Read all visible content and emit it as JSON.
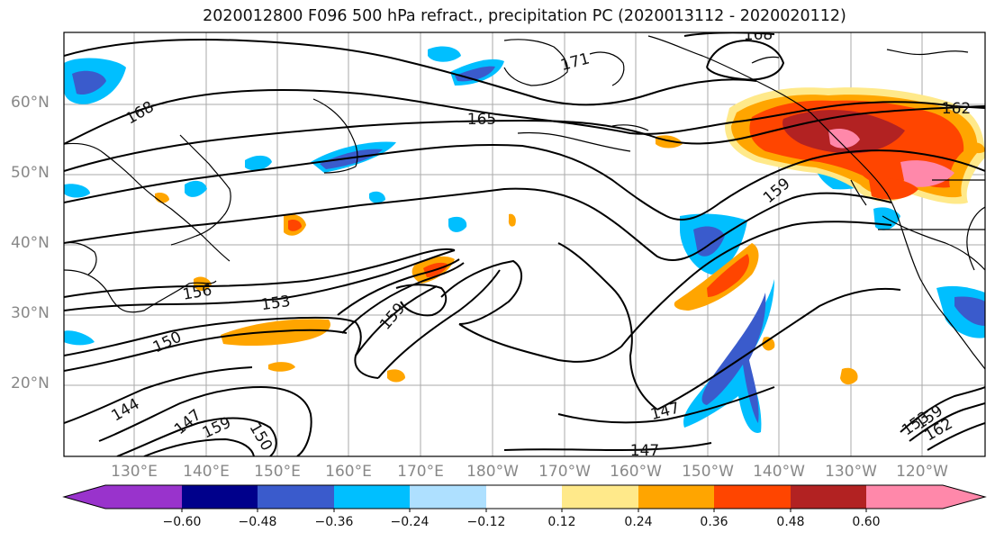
{
  "title": "2020012800 F096 500 hPa refract., precipitation PC (2020013112 - 2020020112)",
  "lat_labels": [
    "60°N",
    "50°N",
    "40°N",
    "30°N",
    "20°N"
  ],
  "lon_labels": [
    "130°E",
    "140°E",
    "150°E",
    "160°E",
    "170°E",
    "180°W",
    "170°W",
    "160°W",
    "150°W",
    "140°W",
    "130°W",
    "120°W"
  ],
  "contour_labels": [
    "171",
    "168",
    "165",
    "162",
    "159",
    "156",
    "153",
    "150",
    "159",
    "147",
    "144",
    "147",
    "150",
    "159",
    "168",
    "147",
    "153",
    "159",
    "162"
  ],
  "colorbar": {
    "ticks": [
      "−0.60",
      "−0.48",
      "−0.36",
      "−0.24",
      "−0.12",
      "0.12",
      "0.24",
      "0.36",
      "0.48",
      "0.60"
    ],
    "colors": [
      "#9933cc",
      "#00008b",
      "#3a5bcc",
      "#00bfff",
      "#aee0ff",
      "#ffffff",
      "#ffe98a",
      "#ffa500",
      "#ff4500",
      "#b22222",
      "#ff88aa"
    ]
  }
}
